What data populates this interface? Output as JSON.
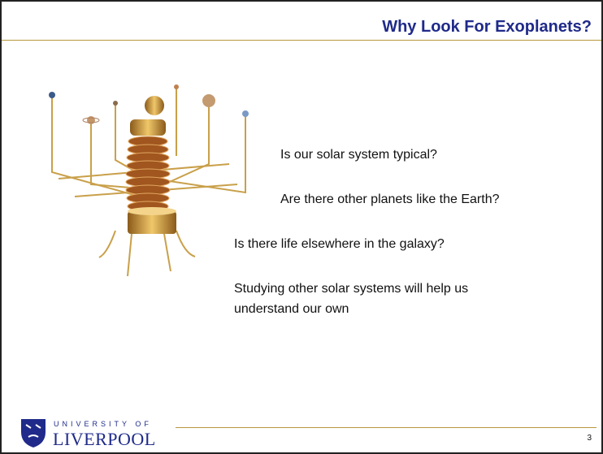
{
  "header": {
    "title": "Why Look For Exoplanets?"
  },
  "body": {
    "lines": [
      "Is our solar system typical?",
      "Are there other planets like the Earth?",
      "Is there life elsewhere in the galaxy?",
      "Studying other solar systems will help us understand our own"
    ]
  },
  "footer": {
    "logo": {
      "line1": "UNIVERSITY OF",
      "line2": "LIVERPOOL"
    },
    "page_number": "3"
  }
}
